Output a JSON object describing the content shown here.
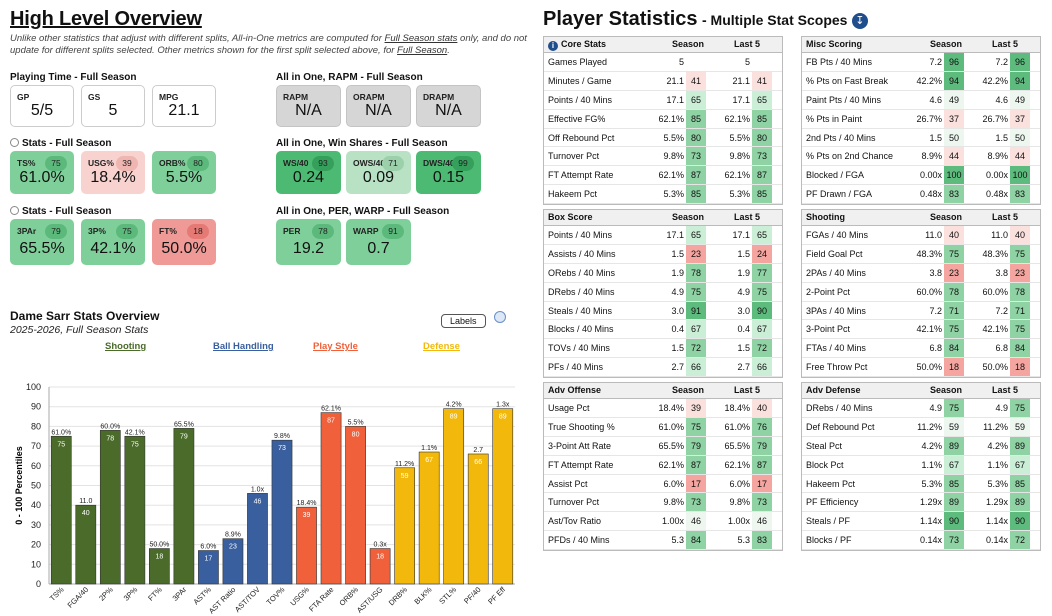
{
  "left": {
    "title": "High Level Overview",
    "note_pre": "Unlike other statistics that adjust with different splits, All-in-One metrics are computed for ",
    "note_link1": "Full Season stats",
    "note_mid": " only, and do not update for different splits selected. Other metrics shown for the first split selected above, for ",
    "note_link2": "Full Season",
    "note_end": ".",
    "playing_time": {
      "label": "Playing Time - Full Season",
      "cards": [
        {
          "label": "GP",
          "value": "5/5"
        },
        {
          "label": "GS",
          "value": "5"
        },
        {
          "label": "MPG",
          "value": "21.1"
        }
      ]
    },
    "rapm": {
      "label": "All in One, RAPM - Full Season",
      "cards": [
        {
          "label": "RAPM",
          "value": "N/A"
        },
        {
          "label": "ORAPM",
          "value": "N/A"
        },
        {
          "label": "DRAPM",
          "value": "N/A"
        }
      ]
    },
    "stats1": {
      "label": "Stats - Full Season",
      "cards": [
        {
          "label": "TS%",
          "value": "61.0%",
          "pct": "75",
          "bg": "#7fcf9a",
          "pbg": "#5cb97c"
        },
        {
          "label": "USG%",
          "value": "18.4%",
          "pct": "39",
          "bg": "#f7d2cf",
          "pbg": "#efb5b0"
        },
        {
          "label": "ORB%",
          "value": "5.5%",
          "pct": "80",
          "bg": "#7fcf9a",
          "pbg": "#5cb97c"
        }
      ]
    },
    "winshares": {
      "label": "All in One, Win Shares - Full Season",
      "cards": [
        {
          "label": "WS/40",
          "value": "0.24",
          "pct": "93",
          "bg": "#4dba74",
          "pbg": "#35a05c"
        },
        {
          "label": "OWS/40",
          "value": "0.09",
          "pct": "71",
          "bg": "#b9e2c4",
          "pbg": "#9bd0aa"
        },
        {
          "label": "DWS/40",
          "value": "0.15",
          "pct": "99",
          "bg": "#4dba74",
          "pbg": "#35a05c"
        }
      ]
    },
    "stats2": {
      "label": "Stats - Full Season",
      "cards": [
        {
          "label": "3PAr",
          "value": "65.5%",
          "pct": "79",
          "bg": "#7fcf9a",
          "pbg": "#5cb97c"
        },
        {
          "label": "3P%",
          "value": "42.1%",
          "pct": "75",
          "bg": "#7fcf9a",
          "pbg": "#5cb97c"
        },
        {
          "label": "FT%",
          "value": "50.0%",
          "pct": "18",
          "bg": "#ef9a96",
          "pbg": "#e57a75"
        }
      ]
    },
    "perwarp": {
      "label": "All in One, PER, WARP - Full Season",
      "cards": [
        {
          "label": "PER",
          "value": "19.2",
          "pct": "78",
          "bg": "#7fcf9a",
          "pbg": "#5cb97c"
        },
        {
          "label": "WARP",
          "value": "0.7",
          "pct": "91",
          "bg": "#7fcf9a",
          "pbg": "#5cb97c"
        }
      ]
    }
  },
  "chart": {
    "title": "Dame Sarr Stats Overview",
    "subtitle": "2025-2026, Full Season Stats",
    "labels_button": "Labels",
    "ylabel": "0 - 100 Percentiles",
    "legend": [
      {
        "name": "Shooting",
        "color": "#4a6b2a"
      },
      {
        "name": "Ball Handling",
        "color": "#3a5f9e"
      },
      {
        "name": "Play Style",
        "color": "#f0603a"
      },
      {
        "name": "Defense",
        "color": "#f2b90c"
      }
    ]
  },
  "chart_data": {
    "type": "bar",
    "title": "Dame Sarr Stats Overview",
    "ylabel": "0 - 100 Percentiles",
    "ylim": [
      0,
      100
    ],
    "yticks": [
      0,
      10,
      20,
      30,
      40,
      50,
      60,
      70,
      80,
      90,
      100
    ],
    "categories": [
      "TS%",
      "FGA/40",
      "2P%",
      "3P%",
      "FT%",
      "3PAr",
      "AST%",
      "AST Ratio",
      "AST/TOV",
      "TOV%",
      "USG%",
      "FTA Rate",
      "ORB%",
      "AST/USG",
      "DRB%",
      "BLK%",
      "STL%",
      "PF/40",
      "PF Eff"
    ],
    "values": [
      75,
      40,
      78,
      75,
      18,
      79,
      17,
      23,
      46,
      73,
      39,
      87,
      80,
      18,
      59,
      67,
      89,
      66,
      89
    ],
    "raw_labels": [
      "61.0%",
      "11.0",
      "60.0%",
      "42.1%",
      "50.0%",
      "65.5%",
      "6.0%",
      "8.9%",
      "1.0x",
      "9.8%",
      "18.4%",
      "62.1%",
      "5.5%",
      "0.3x",
      "11.2%",
      "1.1%",
      "4.2%",
      "2.7",
      "1.3x"
    ],
    "groups": [
      "Shooting",
      "Shooting",
      "Shooting",
      "Shooting",
      "Shooting",
      "Shooting",
      "Ball Handling",
      "Ball Handling",
      "Ball Handling",
      "Ball Handling",
      "Play Style",
      "Play Style",
      "Play Style",
      "Play Style",
      "Defense",
      "Defense",
      "Defense",
      "Defense",
      "Defense"
    ]
  },
  "right": {
    "title": "Player Statistics",
    "subtitle": "- Multiple Stat Scopes",
    "col_season": "Season",
    "col_last5": "Last 5",
    "tables": [
      {
        "title": "Core Stats",
        "info": true,
        "rows": [
          [
            "Games Played",
            "5",
            "",
            "5",
            ""
          ],
          [
            "Minutes / Game",
            "21.1",
            "41",
            "21.1",
            "41"
          ],
          [
            "Points / 40 Mins",
            "17.1",
            "65",
            "17.1",
            "65"
          ],
          [
            "Effective FG%",
            "62.1%",
            "85",
            "62.1%",
            "85"
          ],
          [
            "Off Rebound Pct",
            "5.5%",
            "80",
            "5.5%",
            "80"
          ],
          [
            "Turnover Pct",
            "9.8%",
            "73",
            "9.8%",
            "73"
          ],
          [
            "FT Attempt Rate",
            "62.1%",
            "87",
            "62.1%",
            "87"
          ],
          [
            "Hakeem Pct",
            "5.3%",
            "85",
            "5.3%",
            "85"
          ]
        ]
      },
      {
        "title": "Misc Scoring",
        "rows": [
          [
            "FB Pts / 40 Mins",
            "7.2",
            "96",
            "7.2",
            "96"
          ],
          [
            "% Pts on Fast Break",
            "42.2%",
            "94",
            "42.2%",
            "94"
          ],
          [
            "Paint Pts / 40 Mins",
            "4.6",
            "49",
            "4.6",
            "49"
          ],
          [
            "% Pts in Paint",
            "26.7%",
            "37",
            "26.7%",
            "37"
          ],
          [
            "2nd Pts / 40 Mins",
            "1.5",
            "50",
            "1.5",
            "50"
          ],
          [
            "% Pts on 2nd Chance",
            "8.9%",
            "44",
            "8.9%",
            "44"
          ],
          [
            "Blocked / FGA",
            "0.00x",
            "100",
            "0.00x",
            "100"
          ],
          [
            "PF Drawn / FGA",
            "0.48x",
            "83",
            "0.48x",
            "83"
          ]
        ]
      },
      {
        "title": "Box Score",
        "rows": [
          [
            "Points / 40 Mins",
            "17.1",
            "65",
            "17.1",
            "65"
          ],
          [
            "Assists / 40 Mins",
            "1.5",
            "23",
            "1.5",
            "24"
          ],
          [
            "ORebs / 40 Mins",
            "1.9",
            "78",
            "1.9",
            "77"
          ],
          [
            "DRebs / 40 Mins",
            "4.9",
            "75",
            "4.9",
            "75"
          ],
          [
            "Steals / 40 Mins",
            "3.0",
            "91",
            "3.0",
            "90"
          ],
          [
            "Blocks / 40 Mins",
            "0.4",
            "67",
            "0.4",
            "67"
          ],
          [
            "TOVs / 40 Mins",
            "1.5",
            "72",
            "1.5",
            "72"
          ],
          [
            "PFs / 40 Mins",
            "2.7",
            "66",
            "2.7",
            "66"
          ]
        ]
      },
      {
        "title": "Shooting",
        "rows": [
          [
            "FGAs / 40 Mins",
            "11.0",
            "40",
            "11.0",
            "40"
          ],
          [
            "Field Goal Pct",
            "48.3%",
            "75",
            "48.3%",
            "75"
          ],
          [
            "2PAs / 40 Mins",
            "3.8",
            "23",
            "3.8",
            "23"
          ],
          [
            "2-Point Pct",
            "60.0%",
            "78",
            "60.0%",
            "78"
          ],
          [
            "3PAs / 40 Mins",
            "7.2",
            "71",
            "7.2",
            "71"
          ],
          [
            "3-Point Pct",
            "42.1%",
            "75",
            "42.1%",
            "75"
          ],
          [
            "FTAs / 40 Mins",
            "6.8",
            "84",
            "6.8",
            "84"
          ],
          [
            "Free Throw Pct",
            "50.0%",
            "18",
            "50.0%",
            "18"
          ]
        ]
      },
      {
        "title": "Adv Offense",
        "rows": [
          [
            "Usage Pct",
            "18.4%",
            "39",
            "18.4%",
            "40"
          ],
          [
            "True Shooting %",
            "61.0%",
            "75",
            "61.0%",
            "76"
          ],
          [
            "3-Point Att Rate",
            "65.5%",
            "79",
            "65.5%",
            "79"
          ],
          [
            "FT Attempt Rate",
            "62.1%",
            "87",
            "62.1%",
            "87"
          ],
          [
            "Assist Pct",
            "6.0%",
            "17",
            "6.0%",
            "17"
          ],
          [
            "Turnover Pct",
            "9.8%",
            "73",
            "9.8%",
            "73"
          ],
          [
            "Ast/Tov Ratio",
            "1.00x",
            "46",
            "1.00x",
            "46"
          ],
          [
            "PFDs / 40 Mins",
            "5.3",
            "84",
            "5.3",
            "83"
          ]
        ]
      },
      {
        "title": "Adv Defense",
        "rows": [
          [
            "DRebs / 40 Mins",
            "4.9",
            "75",
            "4.9",
            "75"
          ],
          [
            "Def Rebound Pct",
            "11.2%",
            "59",
            "11.2%",
            "59"
          ],
          [
            "Steal Pct",
            "4.2%",
            "89",
            "4.2%",
            "89"
          ],
          [
            "Block Pct",
            "1.1%",
            "67",
            "1.1%",
            "67"
          ],
          [
            "Hakeem Pct",
            "5.3%",
            "85",
            "5.3%",
            "85"
          ],
          [
            "PF Efficiency",
            "1.29x",
            "89",
            "1.29x",
            "89"
          ],
          [
            "Steals / PF",
            "1.14x",
            "90",
            "1.14x",
            "90"
          ],
          [
            "Blocks / PF",
            "0.14x",
            "73",
            "0.14x",
            "72"
          ]
        ]
      }
    ]
  }
}
